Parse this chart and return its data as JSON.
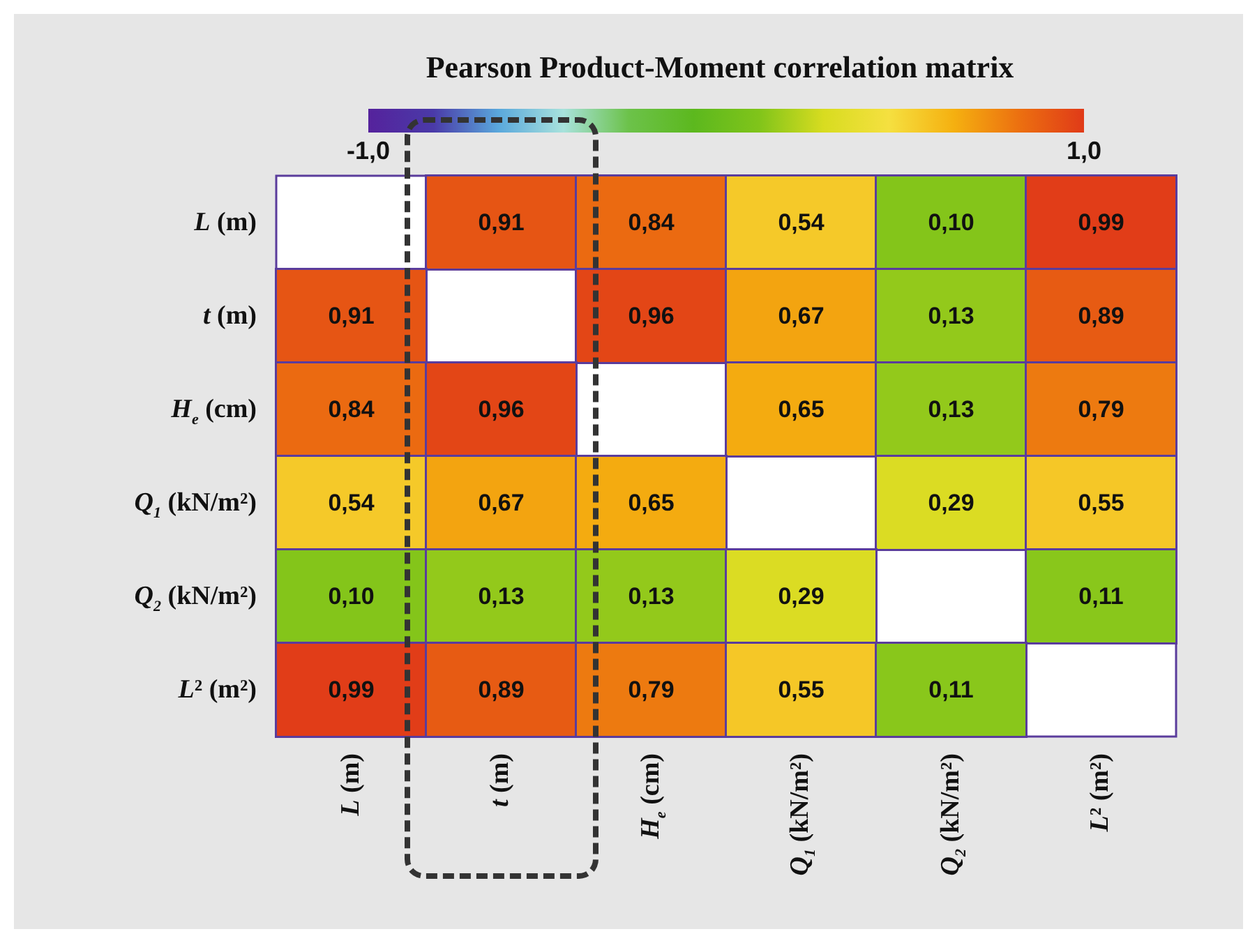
{
  "chart_data": {
    "type": "heatmap",
    "title": "Pearson Product-Moment correlation matrix",
    "categories": [
      "L (m)",
      "t (m)",
      "H$_{e}$ (cm)",
      "Q$_{1}$ (kN/m²)",
      "Q$_{2}$ (kN/m²)",
      "L² (m²)"
    ],
    "y_categories": [
      "L (m)",
      "t (m)",
      "H$_{e}$ (cm)",
      "Q$_{1}$ (kN/m²)",
      "Q$_{2}$ (kN/m²)",
      "L² (m²)"
    ],
    "cells": [
      [
        null,
        0.91,
        0.84,
        0.54,
        0.1,
        0.99
      ],
      [
        0.91,
        null,
        0.96,
        0.67,
        0.13,
        0.89
      ],
      [
        0.84,
        0.96,
        null,
        0.65,
        0.13,
        0.79
      ],
      [
        0.54,
        0.67,
        0.65,
        null,
        0.29,
        0.55
      ],
      [
        0.1,
        0.13,
        0.13,
        0.29,
        null,
        0.11
      ],
      [
        0.99,
        0.89,
        0.79,
        0.55,
        0.11,
        null
      ]
    ],
    "cell_labels": [
      [
        null,
        "0,91",
        "0,84",
        "0,54",
        "0,10",
        "0,99"
      ],
      [
        "0,91",
        null,
        "0,96",
        "0,67",
        "0,13",
        "0,89"
      ],
      [
        "0,84",
        "0,96",
        null,
        "0,65",
        "0,13",
        "0,79"
      ],
      [
        "0,54",
        "0,67",
        "0,65",
        null,
        "0,29",
        "0,55"
      ],
      [
        "0,10",
        "0,13",
        "0,13",
        "0,29",
        null,
        "0,11"
      ],
      [
        "0,99",
        "0,89",
        "0,79",
        "0,55",
        "0,11",
        null
      ]
    ],
    "clim": [
      -1,
      1
    ],
    "cticks": [
      {
        "value": -1,
        "label": "-1,0"
      },
      {
        "value": 1,
        "label": "1,0"
      }
    ]
  }
}
